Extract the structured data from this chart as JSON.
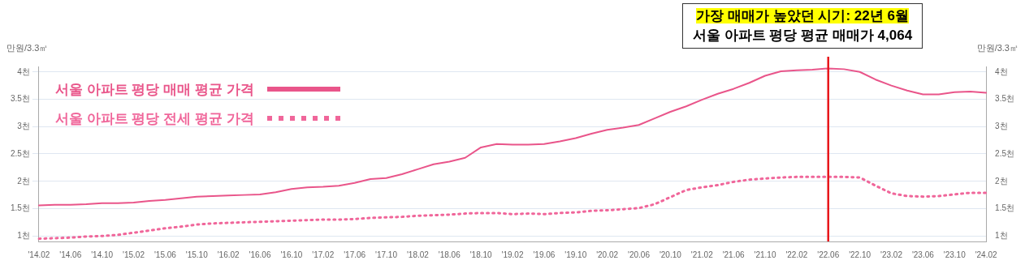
{
  "chart_data": {
    "type": "line",
    "ylabel": "만원/3.3㎡",
    "y2label": "만원/3.3㎡",
    "annotations": [
      "가장 매매가 높았던 시기: 22년 6월",
      "서울 아파트 평당 평균 매매가 4,064"
    ],
    "categories": [
      "'14.02",
      null,
      "'14.06",
      null,
      "'14.10",
      null,
      "'15.02",
      null,
      "'15.06",
      null,
      "'15.10",
      null,
      "'16.02",
      null,
      "'16.06",
      null,
      "'16.10",
      null,
      "'17.02",
      null,
      "'17.06",
      null,
      "'17.10",
      null,
      "'18.02",
      null,
      "'18.06",
      null,
      "'18.10",
      null,
      "'19.02",
      null,
      "'19.06",
      null,
      "'19.10",
      null,
      "'20.02",
      null,
      "'20.06",
      null,
      "'20.10",
      null,
      "'21.02",
      null,
      "'21.06",
      null,
      "'21.10",
      null,
      "'22.02",
      null,
      "'22.06",
      null,
      "'22.10",
      null,
      "'23.02",
      null,
      "'23.06",
      null,
      "'23.10",
      null,
      "'24.02"
    ],
    "series": [
      {
        "name": "서울 아파트 평당 매매 평균 가격",
        "color": "#e9558a",
        "line_style": "solid",
        "values": [
          1.56,
          1.57,
          1.57,
          1.58,
          1.6,
          1.6,
          1.61,
          1.64,
          1.66,
          1.69,
          1.72,
          1.73,
          1.74,
          1.75,
          1.76,
          1.8,
          1.86,
          1.89,
          1.9,
          1.92,
          1.97,
          2.04,
          2.06,
          2.13,
          2.22,
          2.31,
          2.36,
          2.43,
          2.62,
          2.68,
          2.67,
          2.67,
          2.68,
          2.73,
          2.79,
          2.87,
          2.94,
          2.98,
          3.03,
          3.15,
          3.27,
          3.37,
          3.49,
          3.6,
          3.69,
          3.8,
          3.93,
          4.01,
          4.03,
          4.04,
          4.064,
          4.05,
          4.0,
          3.86,
          3.75,
          3.66,
          3.59,
          3.59,
          3.63,
          3.64,
          3.62
        ]
      },
      {
        "name": "서울 아파트 평당 전세 평균 가격",
        "color": "#f0669a",
        "line_style": "dotted",
        "values": [
          0.95,
          0.96,
          0.97,
          0.99,
          1.0,
          1.02,
          1.06,
          1.1,
          1.14,
          1.17,
          1.21,
          1.23,
          1.24,
          1.25,
          1.26,
          1.27,
          1.28,
          1.29,
          1.3,
          1.3,
          1.31,
          1.33,
          1.34,
          1.35,
          1.37,
          1.38,
          1.39,
          1.41,
          1.42,
          1.42,
          1.4,
          1.41,
          1.4,
          1.42,
          1.43,
          1.46,
          1.47,
          1.49,
          1.51,
          1.58,
          1.71,
          1.84,
          1.89,
          1.93,
          1.99,
          2.03,
          2.05,
          2.07,
          2.08,
          2.08,
          2.08,
          2.08,
          2.07,
          1.92,
          1.78,
          1.73,
          1.72,
          1.73,
          1.76,
          1.79,
          1.79
        ]
      }
    ],
    "ylim": [
      0.9,
      4.1
    ],
    "y2lim": [
      0.9,
      4.1
    ],
    "yticks": [
      {
        "value": 1,
        "label": "1천"
      },
      {
        "value": 1.5,
        "label": "1.5천"
      },
      {
        "value": 2,
        "label": "2천"
      },
      {
        "value": 2.5,
        "label": "2.5천"
      },
      {
        "value": 3,
        "label": "3천"
      },
      {
        "value": 3.5,
        "label": "3.5천"
      },
      {
        "value": 4,
        "label": "4천"
      }
    ],
    "y2ticks": [
      {
        "value": 1,
        "label": "1천"
      },
      {
        "value": 1.5,
        "label": "1.5천"
      },
      {
        "value": 2,
        "label": "2천"
      },
      {
        "value": 2.5,
        "label": "2.5천"
      },
      {
        "value": 3,
        "label": "3천"
      },
      {
        "value": 3.5,
        "label": "3.5천"
      },
      {
        "value": 4,
        "label": "4천"
      }
    ],
    "ref_lines": [
      {
        "axis": "x",
        "value": "'22.06",
        "label": null,
        "color": "#e8171c"
      }
    ],
    "grid": "y",
    "legend": "top left",
    "marker": "none"
  }
}
